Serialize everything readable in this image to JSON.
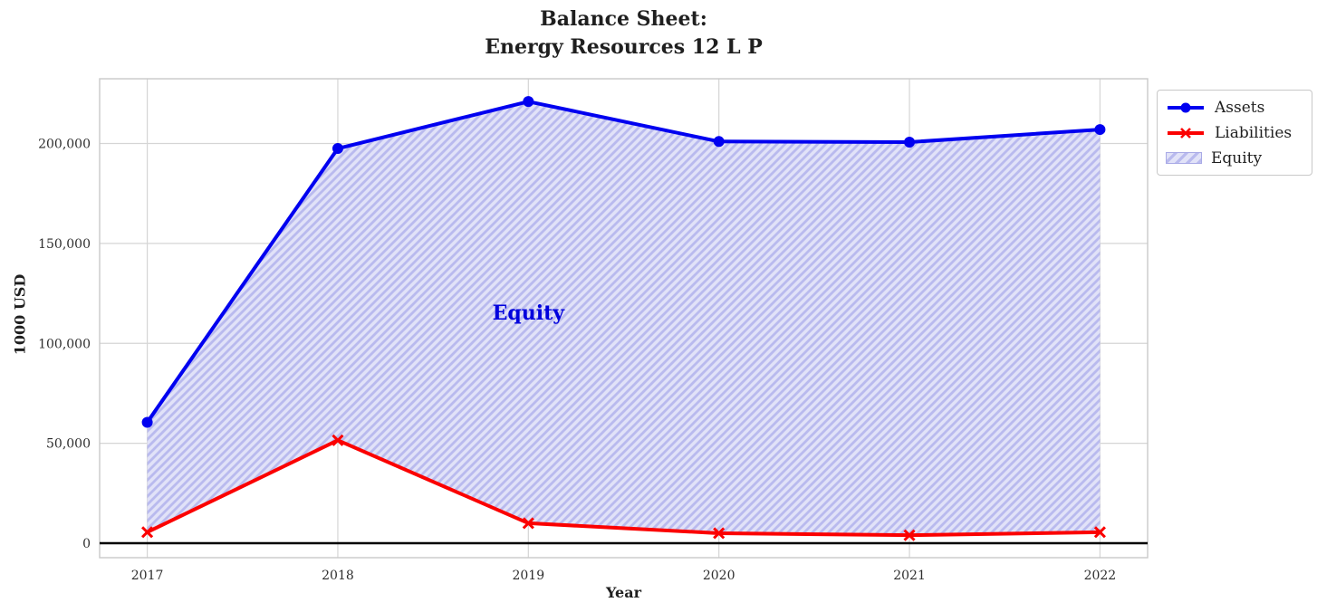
{
  "title": {
    "line1": "Balance Sheet:",
    "line2": "Energy Resources 12 L P"
  },
  "chart_data": {
    "type": "line",
    "x": [
      2017,
      2018,
      2019,
      2020,
      2021,
      2022
    ],
    "series": [
      {
        "name": "Assets",
        "color": "#0000f0",
        "marker": "circle",
        "line_width": 4,
        "values": [
          60500,
          197500,
          221000,
          201000,
          200700,
          207000
        ]
      },
      {
        "name": "Liabilities",
        "color": "#fb0000",
        "marker": "x",
        "line_width": 4,
        "values": [
          5500,
          51500,
          10000,
          5000,
          4000,
          5500
        ]
      }
    ],
    "area": {
      "name": "Equity",
      "between": [
        "Assets",
        "Liabilities"
      ],
      "fill_color": "#e1e2f8",
      "hatch_color": "#b9baee",
      "hatch_style": "/"
    },
    "annotation": {
      "text": "Equity",
      "x": 2019,
      "y": 115000,
      "color": "#0000dd"
    },
    "title": "Balance Sheet: Energy Resources 12 L P",
    "xlabel": "Year",
    "ylabel": "1000 USD",
    "xticks": {
      "values": [
        2017,
        2018,
        2019,
        2020,
        2021,
        2022
      ],
      "labels": [
        "2017",
        "2018",
        "2019",
        "2020",
        "2021",
        "2022"
      ]
    },
    "yticks": {
      "values": [
        0,
        50000,
        100000,
        150000,
        200000
      ],
      "labels": [
        "0",
        "50,000",
        "100,000",
        "150,000",
        "200,000"
      ]
    },
    "xlim": [
      2016.75,
      2022.25
    ],
    "ylim": [
      -7250,
      232400
    ],
    "grid": true,
    "grid_color": "#d5d5d5",
    "border_color": "#c9c9c9",
    "zero_line": {
      "show": true,
      "color": "#000000",
      "width": 2.5
    },
    "legend": {
      "position": "upper-right-outside",
      "items": [
        "Assets",
        "Liabilities",
        "Equity"
      ]
    }
  }
}
